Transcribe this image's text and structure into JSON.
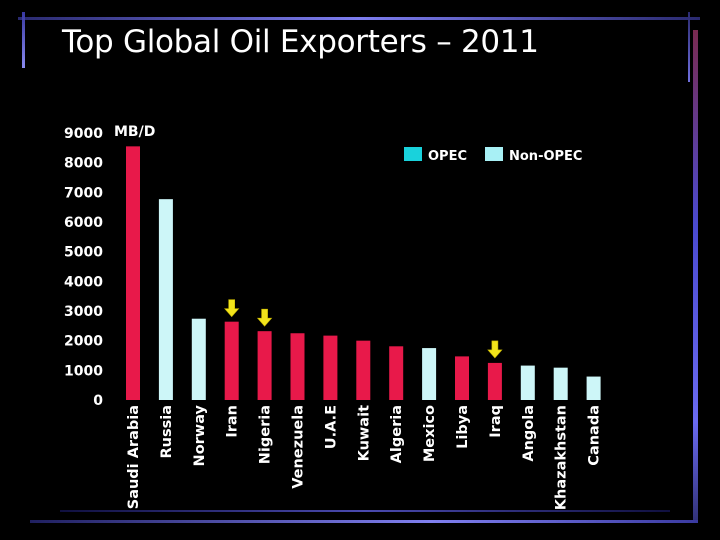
{
  "slide": {
    "title": "Top Global Oil Exporters – 2011"
  },
  "colors": {
    "background": "#000000",
    "opec": "#e8194a",
    "non_opec": "#cdf6f8",
    "opec_legend_swatch": "#19d2dc",
    "non_opec_legend_swatch": "#a8f0f5",
    "arrow": "#f2e41b",
    "frame_accent": "#5a5ad2"
  },
  "chart_data": {
    "type": "bar",
    "title": "Top Global Oil Exporters – 2011",
    "ylabel": "MB/D",
    "xlabel": "",
    "ylim": [
      0,
      9000
    ],
    "yticks": [
      0,
      1000,
      2000,
      3000,
      4000,
      5000,
      6000,
      7000,
      8000,
      9000
    ],
    "grid": false,
    "legend_position": "top-right",
    "categories": [
      "Saudi Arabia",
      "Russia",
      "Norway",
      "Iran",
      "Nigeria",
      "Venezuela",
      "U.A.E",
      "Kuwait",
      "Algeria",
      "Mexico",
      "Libya",
      "Iraq",
      "Angola",
      "Khazakhstan",
      "Canada"
    ],
    "values": [
      8550,
      6770,
      2740,
      2640,
      2320,
      2250,
      2170,
      2000,
      1810,
      1750,
      1470,
      1250,
      1160,
      1090,
      790
    ],
    "group": [
      "OPEC",
      "Non-OPEC",
      "Non-OPEC",
      "OPEC",
      "OPEC",
      "OPEC",
      "OPEC",
      "OPEC",
      "OPEC",
      "Non-OPEC",
      "OPEC",
      "OPEC",
      "Non-OPEC",
      "Non-OPEC",
      "Non-OPEC"
    ],
    "legend": [
      {
        "label": "OPEC",
        "group": "OPEC"
      },
      {
        "label": "Non-OPEC",
        "group": "Non-OPEC"
      }
    ],
    "highlighted": [
      "Iran",
      "Nigeria",
      "Iraq"
    ]
  }
}
